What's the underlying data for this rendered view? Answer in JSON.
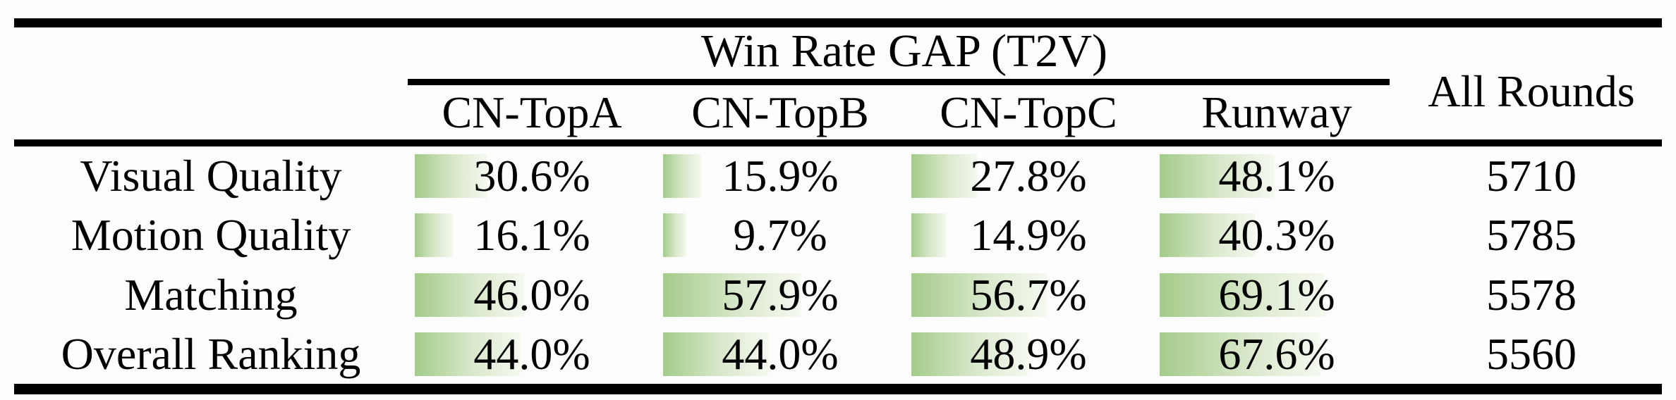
{
  "table": {
    "group_header": "Win Rate GAP (T2V)",
    "all_rounds_header": "All Rounds",
    "columns": [
      "CN-TopA",
      "CN-TopB",
      "CN-TopC",
      "Runway"
    ],
    "rows": [
      {
        "label": "Visual Quality",
        "values": [
          30.6,
          15.9,
          27.8,
          48.1
        ],
        "display": [
          "30.6%",
          "15.9%",
          "27.8%",
          "48.1%"
        ],
        "all_rounds": "5710"
      },
      {
        "label": "Motion Quality",
        "values": [
          16.1,
          9.7,
          14.9,
          40.3
        ],
        "display": [
          "16.1%",
          "9.7%",
          "14.9%",
          "40.3%"
        ],
        "all_rounds": "5785"
      },
      {
        "label": "Matching",
        "values": [
          46.0,
          57.9,
          56.7,
          69.1
        ],
        "display": [
          "46.0%",
          "57.9%",
          "56.7%",
          "69.1%"
        ],
        "all_rounds": "5578"
      },
      {
        "label": "Overall Ranking",
        "values": [
          44.0,
          44.0,
          48.9,
          67.6
        ],
        "display": [
          "44.0%",
          "44.0%",
          "48.9%",
          "67.6%"
        ],
        "all_rounds": "5560"
      }
    ]
  },
  "colors": {
    "bar_green_start": "#a3cb8a",
    "bar_green_end": "#f5f9f0",
    "rule_black": "#000000",
    "background": "#fdfdfd"
  },
  "chart_data": {
    "type": "table",
    "title": "Win Rate GAP (T2V)",
    "columns": [
      "CN-TopA",
      "CN-TopB",
      "CN-TopC",
      "Runway",
      "All Rounds"
    ],
    "rows": [
      {
        "label": "Visual Quality",
        "win_rate_gap_pct": {
          "CN-TopA": 30.6,
          "CN-TopB": 15.9,
          "CN-TopC": 27.8,
          "Runway": 48.1
        },
        "all_rounds": 5710
      },
      {
        "label": "Motion Quality",
        "win_rate_gap_pct": {
          "CN-TopA": 16.1,
          "CN-TopB": 9.7,
          "CN-TopC": 14.9,
          "Runway": 40.3
        },
        "all_rounds": 5785
      },
      {
        "label": "Matching",
        "win_rate_gap_pct": {
          "CN-TopA": 46.0,
          "CN-TopB": 57.9,
          "CN-TopC": 56.7,
          "Runway": 69.1
        },
        "all_rounds": 5578
      },
      {
        "label": "Overall Ranking",
        "win_rate_gap_pct": {
          "CN-TopA": 44.0,
          "CN-TopB": 44.0,
          "CN-TopC": 48.9,
          "Runway": 67.6
        },
        "all_rounds": 5560
      }
    ],
    "notes": "Each percentage cell has a horizontal green gradient bar whose width is proportional to the value (100% = full cell width); bars fade from green at left to white at right.",
    "layout": "Booktabs-style paper table: thick top rule, cmidrule under group header spanning the four model columns, thick rule under headers, thick bottom rule. 'All Rounds' spans both header rows."
  }
}
